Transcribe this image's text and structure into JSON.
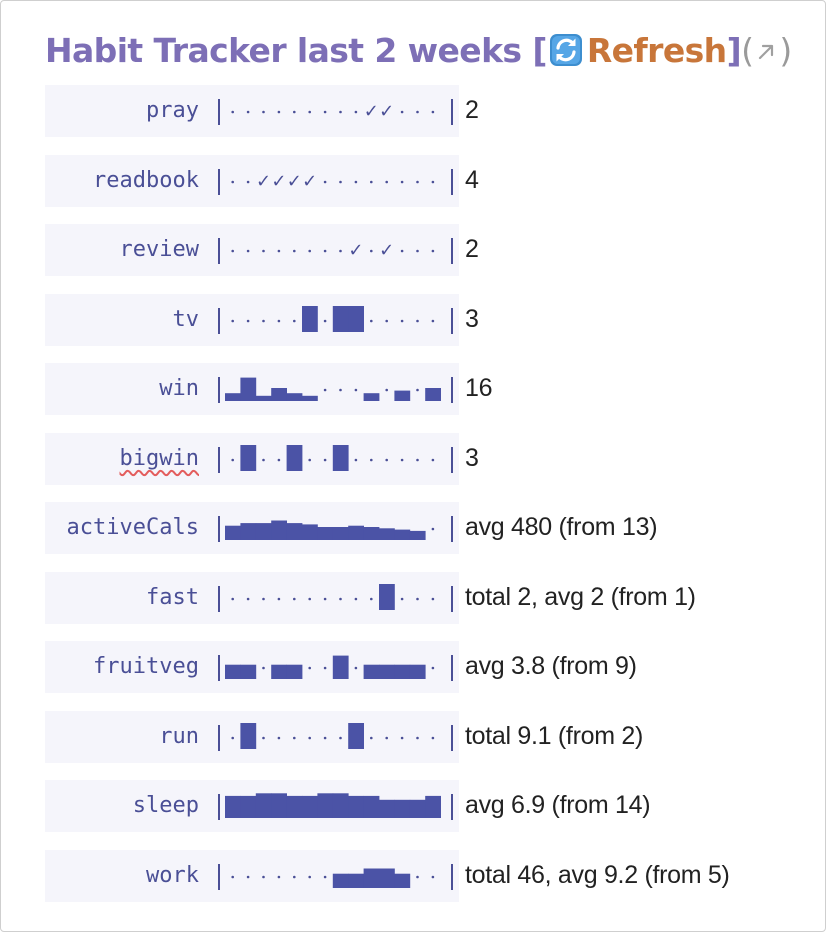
{
  "header": {
    "title": "Habit Tracker last 2 weeks",
    "open_bracket": "[",
    "refresh_icon": "sync-arrows-icon",
    "refresh_label": "Refresh",
    "close_bracket": "]",
    "paren_open": "(",
    "external_icon": "north-east-arrow-icon",
    "paren_close": ")"
  },
  "colors": {
    "bar": "#4b53a6",
    "label_bg": "#f5f5fb",
    "title": "#7d6fb6",
    "refresh": "#c8763a"
  },
  "habits": [
    {
      "name": "pray",
      "kind": "check",
      "days": [
        0,
        0,
        0,
        0,
        0,
        0,
        0,
        0,
        0,
        1,
        1,
        0,
        0,
        0
      ],
      "value": "2"
    },
    {
      "name": "readbook",
      "kind": "check",
      "days": [
        0,
        0,
        1,
        1,
        1,
        1,
        0,
        0,
        0,
        0,
        0,
        0,
        0,
        0
      ],
      "value": "4"
    },
    {
      "name": "review",
      "kind": "check",
      "days": [
        0,
        0,
        0,
        0,
        0,
        0,
        0,
        0,
        1,
        0,
        1,
        0,
        0,
        0
      ],
      "value": "2"
    },
    {
      "name": "tv",
      "kind": "bar",
      "days": [
        0,
        0,
        0,
        0,
        0,
        1,
        0,
        1,
        1,
        0,
        0,
        0,
        0,
        0
      ],
      "value": "3"
    },
    {
      "name": "win",
      "kind": "bar",
      "days": [
        0.3,
        0.9,
        0.2,
        0.5,
        0.3,
        0.2,
        0,
        0,
        0,
        0.3,
        0,
        0.4,
        0,
        0.5
      ],
      "value": "16"
    },
    {
      "name": "bigwin",
      "kind": "bar",
      "spell": true,
      "days": [
        0,
        1,
        0,
        0,
        1,
        0,
        0,
        1,
        0,
        0,
        0,
        0,
        0,
        0
      ],
      "value": "3"
    },
    {
      "name": "activeCals",
      "kind": "bar",
      "days": [
        0.55,
        0.65,
        0.65,
        0.75,
        0.65,
        0.6,
        0.5,
        0.5,
        0.55,
        0.5,
        0.45,
        0.4,
        0.35,
        0
      ],
      "value": "avg 480 (from 13)"
    },
    {
      "name": "fast",
      "kind": "bar",
      "days": [
        0,
        0,
        0,
        0,
        0,
        0,
        0,
        0,
        0,
        0,
        1,
        0,
        0,
        0
      ],
      "value": "total 2, avg 2 (from 1)"
    },
    {
      "name": "fruitveg",
      "kind": "bar",
      "days": [
        0.55,
        0.55,
        0,
        0.55,
        0.55,
        0,
        0,
        0.9,
        0,
        0.55,
        0.55,
        0.55,
        0.55,
        0
      ],
      "value": "avg 3.8 (from 9)"
    },
    {
      "name": "run",
      "kind": "bar",
      "days": [
        0,
        1,
        0,
        0,
        0,
        0,
        0,
        0,
        1,
        0,
        0,
        0,
        0,
        0
      ],
      "value": "total 9.1 (from 2)"
    },
    {
      "name": "sleep",
      "kind": "bar",
      "days": [
        0.85,
        0.85,
        0.95,
        0.95,
        0.85,
        0.85,
        0.95,
        0.95,
        0.85,
        0.85,
        0.7,
        0.7,
        0.7,
        0.85
      ],
      "value": "avg 6.9 (from 14)"
    },
    {
      "name": "work",
      "kind": "bar",
      "days": [
        0,
        0,
        0,
        0,
        0,
        0,
        0,
        0.55,
        0.55,
        0.75,
        0.75,
        0.55,
        0,
        0
      ],
      "value": "total 46, avg 9.2 (from 5)"
    }
  ]
}
